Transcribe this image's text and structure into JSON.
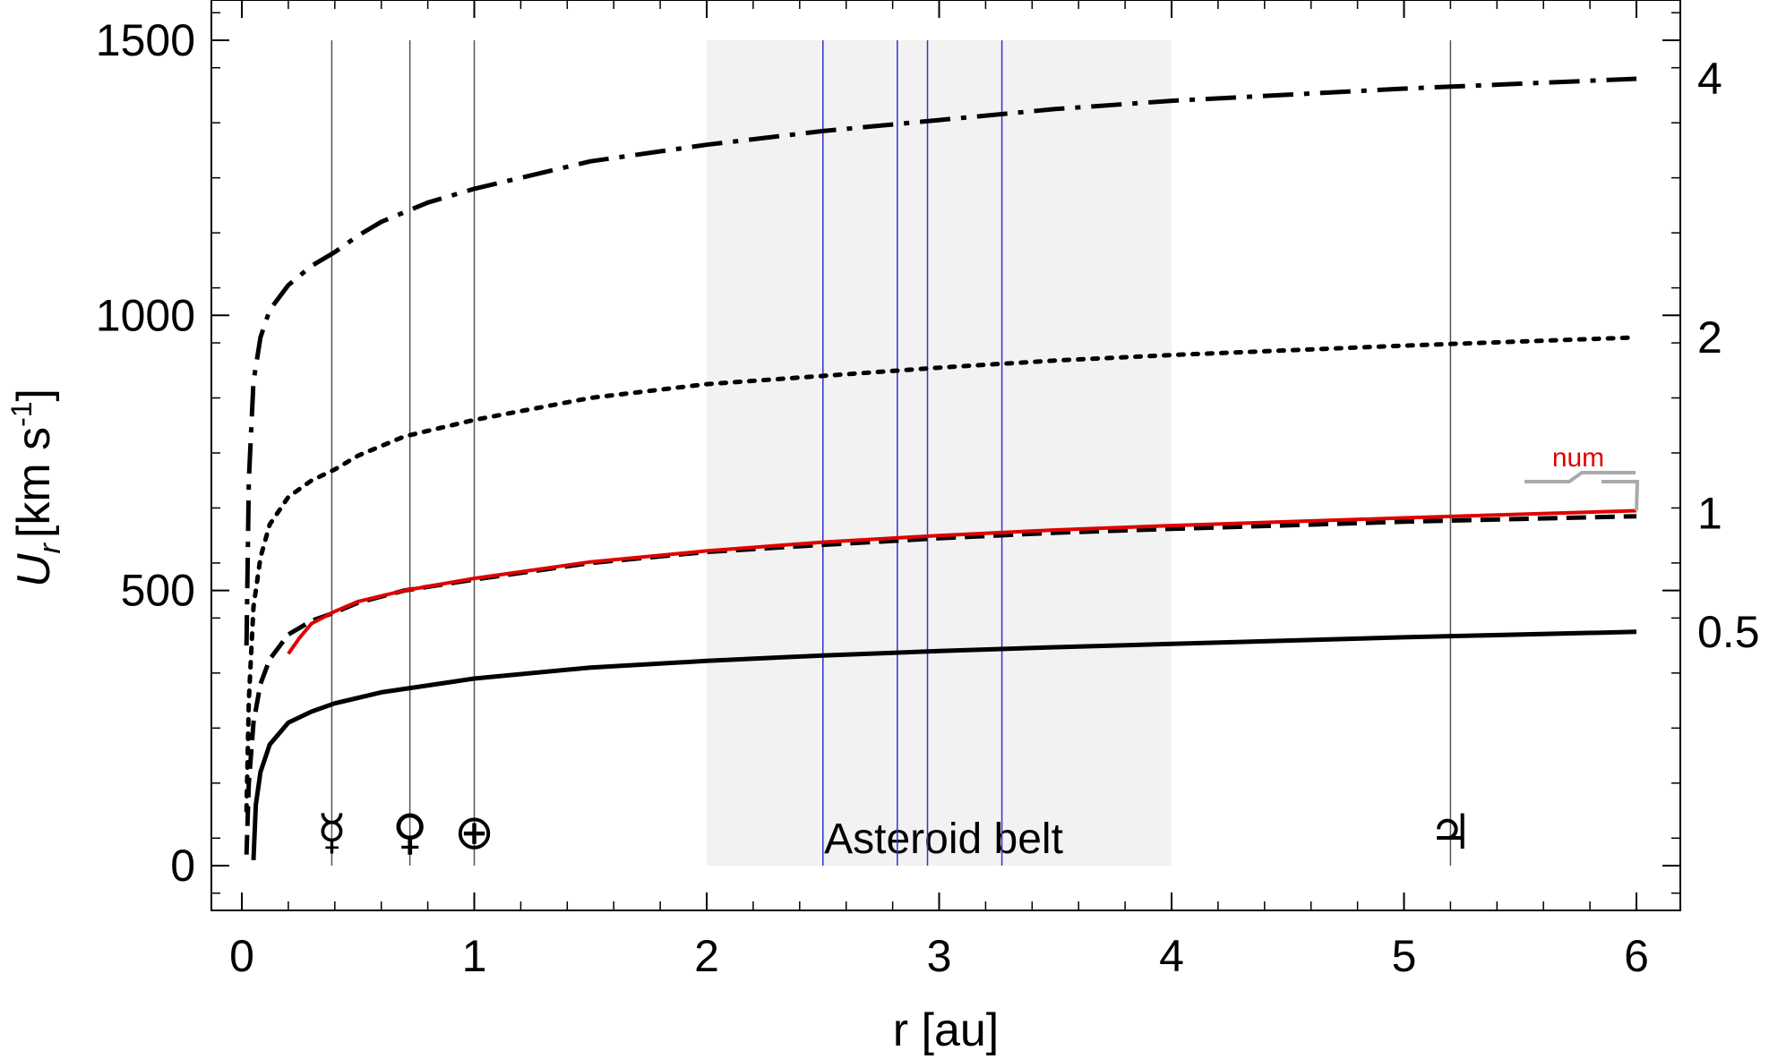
{
  "chart_data": {
    "type": "line",
    "xlabel": "r [au]",
    "ylabel_main": "U",
    "ylabel_sub": "r",
    "ylabel_unit": "[km s",
    "ylabel_exp": "-1",
    "ylabel_close": "]",
    "xlim": [
      -0.12,
      6.2
    ],
    "ylim": [
      -80,
      1560
    ],
    "xticks": [
      0,
      1,
      2,
      3,
      4,
      5,
      6
    ],
    "yticks": [
      0,
      500,
      1000,
      1500
    ],
    "shaded_region": {
      "x": [
        2,
        4
      ],
      "y": [
        0,
        1500
      ],
      "label": "Asteroid belt",
      "color": "#f2f2f2"
    },
    "planet_lines": [
      {
        "x": 0.387,
        "symbol": "☿"
      },
      {
        "x": 0.723,
        "symbol": "♀"
      },
      {
        "x": 1.0,
        "symbol": "⊕"
      },
      {
        "x": 5.2,
        "symbol": "♃"
      }
    ],
    "kirkwood_lines": {
      "x": [
        2.5,
        2.82,
        2.95,
        3.27
      ],
      "color": "#3333cc"
    },
    "series": [
      {
        "label": "4",
        "style": "dashdot",
        "color": "#000000",
        "points": [
          [
            0.02,
            400
          ],
          [
            0.03,
            700
          ],
          [
            0.05,
            880
          ],
          [
            0.08,
            960
          ],
          [
            0.12,
            1010
          ],
          [
            0.2,
            1055
          ],
          [
            0.3,
            1090
          ],
          [
            0.4,
            1115
          ],
          [
            0.5,
            1145
          ],
          [
            0.6,
            1170
          ],
          [
            0.8,
            1205
          ],
          [
            1.0,
            1230
          ],
          [
            1.5,
            1280
          ],
          [
            2.0,
            1310
          ],
          [
            2.5,
            1335
          ],
          [
            3.0,
            1355
          ],
          [
            3.5,
            1375
          ],
          [
            4.0,
            1390
          ],
          [
            5.0,
            1412
          ],
          [
            6.0,
            1430
          ]
        ]
      },
      {
        "label": "2",
        "style": "dotted",
        "color": "#000000",
        "points": [
          [
            0.02,
            100
          ],
          [
            0.03,
            300
          ],
          [
            0.05,
            470
          ],
          [
            0.08,
            560
          ],
          [
            0.12,
            620
          ],
          [
            0.2,
            670
          ],
          [
            0.3,
            700
          ],
          [
            0.4,
            720
          ],
          [
            0.5,
            745
          ],
          [
            0.7,
            780
          ],
          [
            1.0,
            810
          ],
          [
            1.5,
            850
          ],
          [
            2.0,
            875
          ],
          [
            2.5,
            890
          ],
          [
            3.0,
            905
          ],
          [
            3.5,
            918
          ],
          [
            4.0,
            928
          ],
          [
            5.0,
            945
          ],
          [
            6.0,
            960
          ]
        ]
      },
      {
        "label": "1",
        "style": "dashed",
        "color": "#000000",
        "points": [
          [
            0.02,
            20
          ],
          [
            0.03,
            150
          ],
          [
            0.05,
            260
          ],
          [
            0.08,
            330
          ],
          [
            0.12,
            375
          ],
          [
            0.2,
            420
          ],
          [
            0.3,
            445
          ],
          [
            0.4,
            460
          ],
          [
            0.5,
            478
          ],
          [
            0.7,
            500
          ],
          [
            1.0,
            520
          ],
          [
            1.5,
            550
          ],
          [
            2.0,
            570
          ],
          [
            2.5,
            583
          ],
          [
            3.0,
            595
          ],
          [
            3.5,
            605
          ],
          [
            4.0,
            612
          ],
          [
            5.0,
            625
          ],
          [
            6.0,
            635
          ]
        ]
      },
      {
        "label": "num",
        "style": "solid",
        "color": "#e00000",
        "points": [
          [
            0.2,
            385
          ],
          [
            0.25,
            415
          ],
          [
            0.3,
            440
          ],
          [
            0.4,
            462
          ],
          [
            0.5,
            480
          ],
          [
            0.7,
            500
          ],
          [
            1.0,
            522
          ],
          [
            1.5,
            552
          ],
          [
            2.0,
            572
          ],
          [
            2.5,
            588
          ],
          [
            3.0,
            600
          ],
          [
            3.5,
            610
          ],
          [
            4.0,
            618
          ],
          [
            5.0,
            632
          ],
          [
            6.0,
            645
          ]
        ]
      },
      {
        "label": "0.5",
        "style": "solid",
        "color": "#000000",
        "points": [
          [
            0.05,
            10
          ],
          [
            0.06,
            110
          ],
          [
            0.08,
            170
          ],
          [
            0.12,
            220
          ],
          [
            0.2,
            260
          ],
          [
            0.3,
            280
          ],
          [
            0.4,
            295
          ],
          [
            0.6,
            315
          ],
          [
            1.0,
            340
          ],
          [
            1.5,
            360
          ],
          [
            2.0,
            372
          ],
          [
            2.5,
            382
          ],
          [
            3.0,
            390
          ],
          [
            3.5,
            397
          ],
          [
            4.0,
            403
          ],
          [
            5.0,
            415
          ],
          [
            6.0,
            425
          ]
        ]
      }
    ],
    "right_labels": [
      {
        "text": "4",
        "y": 1430
      },
      {
        "text": "2",
        "y": 960
      },
      {
        "text": "1",
        "y": 640
      },
      {
        "text": "0.5",
        "y": 425
      }
    ],
    "num_label": "num"
  }
}
